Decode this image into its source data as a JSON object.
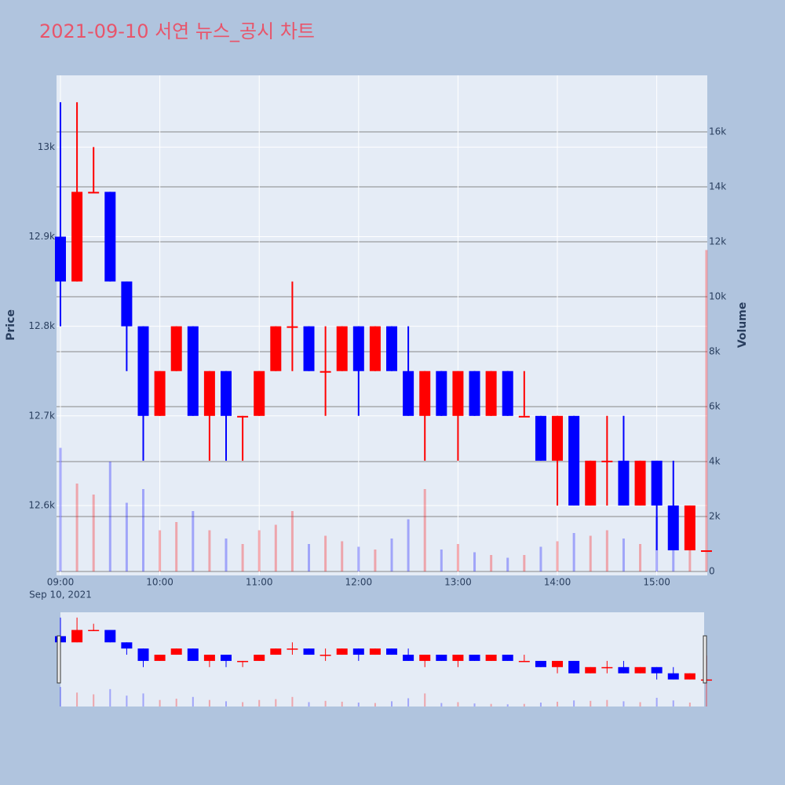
{
  "chart_data": {
    "type": "candlestick",
    "title": "2021-09-10 서연 뉴스_공시 차트",
    "yaxis_title": "Price",
    "y2axis_title": "Volume",
    "xaxis_date_label": "Sep 10, 2021",
    "increasing_color": "#ff0000",
    "decreasing_color": "#0000ff",
    "x": [
      "2021-09-10 09:00",
      "2021-09-10 09:10",
      "2021-09-10 09:20",
      "2021-09-10 09:30",
      "2021-09-10 09:40",
      "2021-09-10 09:50",
      "2021-09-10 10:00",
      "2021-09-10 10:10",
      "2021-09-10 10:20",
      "2021-09-10 10:30",
      "2021-09-10 10:40",
      "2021-09-10 10:50",
      "2021-09-10 11:00",
      "2021-09-10 11:10",
      "2021-09-10 11:20",
      "2021-09-10 11:30",
      "2021-09-10 11:40",
      "2021-09-10 11:50",
      "2021-09-10 12:00",
      "2021-09-10 12:10",
      "2021-09-10 12:20",
      "2021-09-10 12:30",
      "2021-09-10 12:40",
      "2021-09-10 12:50",
      "2021-09-10 13:00",
      "2021-09-10 13:10",
      "2021-09-10 13:20",
      "2021-09-10 13:30",
      "2021-09-10 13:40",
      "2021-09-10 13:50",
      "2021-09-10 14:00",
      "2021-09-10 14:10",
      "2021-09-10 14:20",
      "2021-09-10 14:30",
      "2021-09-10 14:40",
      "2021-09-10 14:50",
      "2021-09-10 15:00",
      "2021-09-10 15:10",
      "2021-09-10 15:20",
      "2021-09-10 15:30"
    ],
    "open": [
      12900,
      12850,
      12950,
      12950,
      12850,
      12800,
      12700,
      12750,
      12800,
      12700,
      12750,
      12700,
      12700,
      12750,
      12800,
      12800,
      12750,
      12750,
      12800,
      12750,
      12800,
      12750,
      12700,
      12750,
      12700,
      12750,
      12700,
      12750,
      12700,
      12700,
      12650,
      12700,
      12600,
      12650,
      12650,
      12600,
      12650,
      12600,
      12550,
      12550
    ],
    "high": [
      13050,
      13050,
      13000,
      12950,
      12850,
      12800,
      12750,
      12800,
      12800,
      12750,
      12750,
      12700,
      12750,
      12800,
      12850,
      12800,
      12800,
      12800,
      12800,
      12800,
      12800,
      12800,
      12750,
      12750,
      12750,
      12750,
      12750,
      12750,
      12750,
      12700,
      12700,
      12700,
      12650,
      12700,
      12700,
      12650,
      12650,
      12650,
      12600,
      12550
    ],
    "low": [
      12800,
      12850,
      12950,
      12850,
      12750,
      12650,
      12700,
      12750,
      12700,
      12650,
      12650,
      12650,
      12700,
      12750,
      12750,
      12750,
      12700,
      12750,
      12700,
      12750,
      12750,
      12700,
      12650,
      12700,
      12650,
      12700,
      12700,
      12700,
      12700,
      12650,
      12600,
      12600,
      12600,
      12600,
      12600,
      12600,
      12550,
      12550,
      12550,
      12550
    ],
    "close": [
      12850,
      12950,
      12950,
      12850,
      12800,
      12700,
      12750,
      12800,
      12700,
      12750,
      12700,
      12700,
      12750,
      12800,
      12800,
      12750,
      12750,
      12800,
      12750,
      12800,
      12750,
      12700,
      12750,
      12700,
      12750,
      12700,
      12750,
      12700,
      12700,
      12650,
      12700,
      12600,
      12650,
      12650,
      12600,
      12650,
      12600,
      12550,
      12600,
      12550
    ],
    "volume": [
      4500,
      3200,
      2800,
      4000,
      2500,
      3000,
      1500,
      1800,
      2200,
      1500,
      1200,
      1000,
      1500,
      1700,
      2200,
      1000,
      1300,
      1100,
      900,
      800,
      1200,
      1900,
      3000,
      800,
      1000,
      700,
      600,
      500,
      600,
      900,
      1100,
      1400,
      1300,
      1500,
      1200,
      1000,
      2000,
      1400,
      900,
      11700
    ],
    "xlim": [
      "2021-09-10 08:57:38",
      "2021-09-10 15:30:30"
    ],
    "xticks": [
      {
        "value": "2021-09-10 09:00",
        "label": "09:00"
      },
      {
        "value": "2021-09-10 10:00",
        "label": "10:00"
      },
      {
        "value": "2021-09-10 11:00",
        "label": "11:00"
      },
      {
        "value": "2021-09-10 12:00",
        "label": "12:00"
      },
      {
        "value": "2021-09-10 13:00",
        "label": "13:00"
      },
      {
        "value": "2021-09-10 14:00",
        "label": "14:00"
      },
      {
        "value": "2021-09-10 15:00",
        "label": "15:00"
      }
    ],
    "ylim": [
      12522,
      13080
    ],
    "yticks": [
      {
        "value": 12600,
        "label": "12.6k"
      },
      {
        "value": 12700,
        "label": "12.7k"
      },
      {
        "value": 12800,
        "label": "12.8k"
      },
      {
        "value": 12900,
        "label": "12.9k"
      },
      {
        "value": 13000,
        "label": "13k"
      }
    ],
    "y2lim": [
      0,
      18057
    ],
    "y2ticks": [
      0,
      {
        "value": 2000,
        "label": "2k"
      },
      {
        "value": 4000,
        "label": "4k"
      },
      {
        "value": 6000,
        "label": "6k"
      },
      {
        "value": 8000,
        "label": "8k"
      },
      {
        "value": 10000,
        "label": "10k"
      },
      {
        "value": 12000,
        "label": "12k"
      },
      {
        "value": 14000,
        "label": "14k"
      },
      {
        "value": 16000,
        "label": "16k"
      }
    ],
    "grid": true,
    "rangeslider": true
  }
}
